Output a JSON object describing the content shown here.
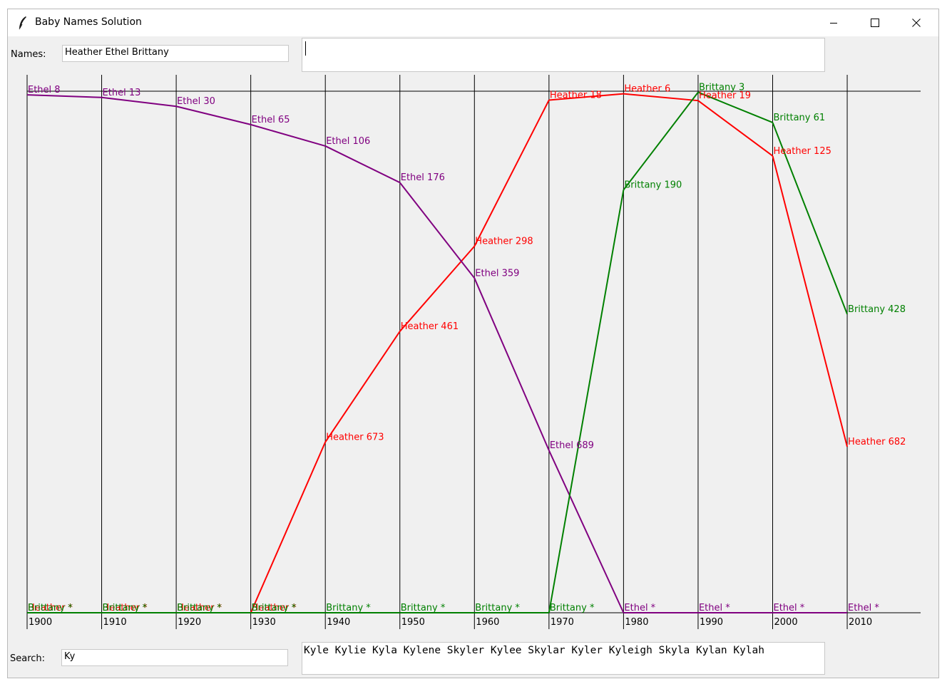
{
  "window": {
    "title": "Baby Names Solution"
  },
  "names_label": "Names:",
  "names_value": "Heather Ethel Brittany",
  "search_label": "Search:",
  "search_value": "Ky",
  "search_results": "Kyle Kylie Kyla Kylene Skyler Kylee Skylar Kyler Kyleigh Skyla Kylan Kylah",
  "icons": {
    "app": "feather-icon",
    "minimize": "minimize-icon",
    "maximize": "maximize-icon",
    "close": "close-icon"
  },
  "chart_data": {
    "type": "line",
    "decades": [
      "1900",
      "1910",
      "1920",
      "1930",
      "1940",
      "1950",
      "1960",
      "1970",
      "1980",
      "1990",
      "2000",
      "2010"
    ],
    "rank_max": 1000,
    "series": [
      {
        "name": "Heather",
        "color": "#ff0000",
        "ranks": [
          null,
          null,
          null,
          null,
          673,
          461,
          298,
          18,
          6,
          19,
          125,
          682
        ]
      },
      {
        "name": "Ethel",
        "color": "#800080",
        "ranks": [
          8,
          13,
          30,
          65,
          106,
          176,
          359,
          689,
          null,
          null,
          null,
          null
        ]
      },
      {
        "name": "Brittany",
        "color": "#008000",
        "ranks": [
          null,
          null,
          null,
          null,
          null,
          null,
          null,
          null,
          190,
          3,
          61,
          428
        ]
      }
    ]
  }
}
